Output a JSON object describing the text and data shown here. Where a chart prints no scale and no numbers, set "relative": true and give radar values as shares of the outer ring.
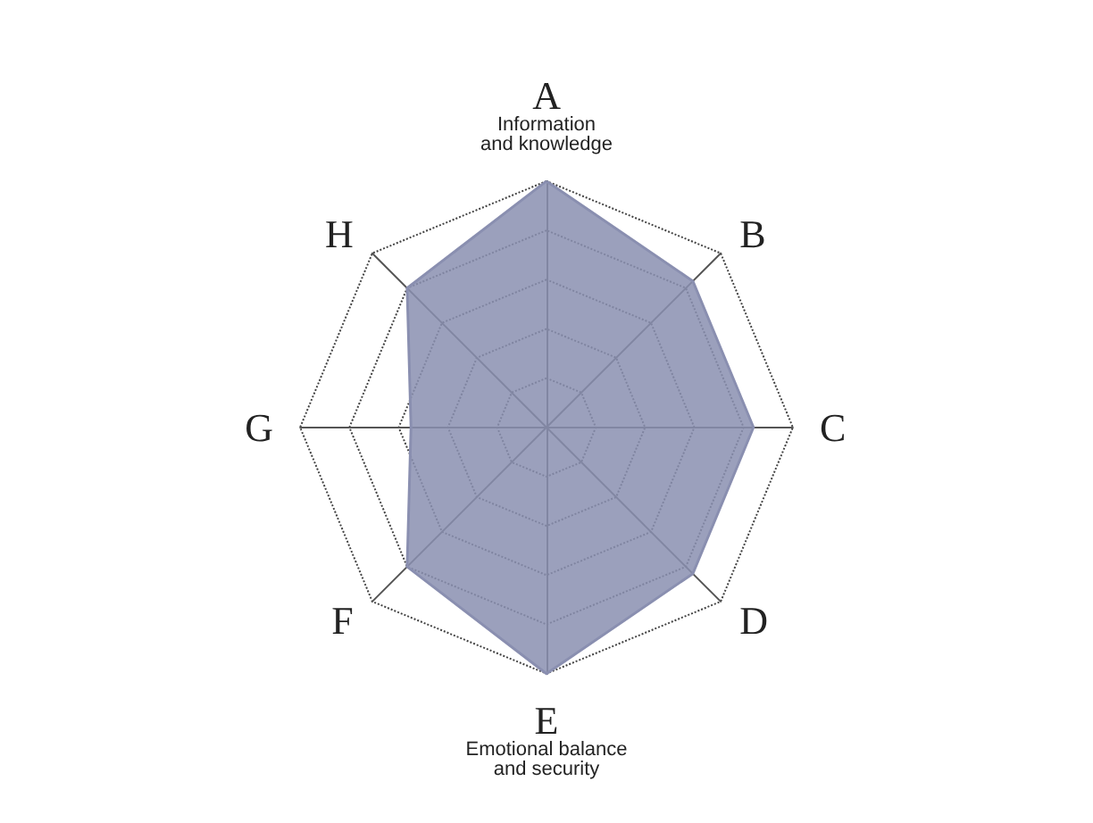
{
  "chart_data": {
    "type": "radar",
    "relative": true,
    "grid": true,
    "categories": [
      "A",
      "B",
      "C",
      "D",
      "E",
      "F",
      "G",
      "H"
    ],
    "series": [
      {
        "color": "#8a8fb0",
        "values": [
          1.0,
          0.84,
          0.84,
          0.84,
          1.0,
          0.8,
          0.55,
          0.8
        ]
      }
    ],
    "annotations": [
      {
        "text": "Information and knowledge",
        "x": "A"
      },
      {
        "text": "Emotional balance and security",
        "x": "E"
      }
    ]
  }
}
